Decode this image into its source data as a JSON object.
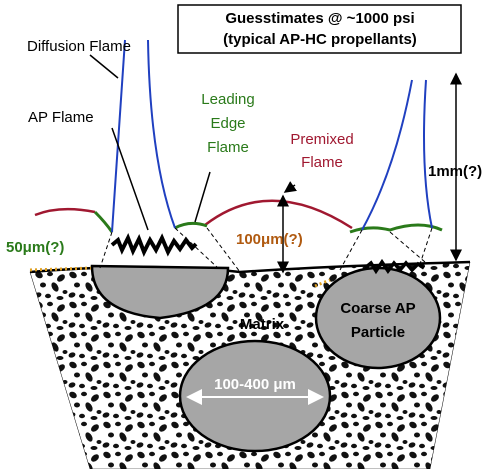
{
  "header": {
    "lines": [
      "Guesstimates @ ~1000 psi",
      "(typical AP-HC propellants)"
    ]
  },
  "labels": {
    "diffusion_flame": "Diffusion Flame",
    "ap_flame": "AP Flame",
    "leading_edge_flame": [
      "Leading",
      "Edge",
      "Flame"
    ],
    "premixed_flame": [
      "Premixed",
      "Flame"
    ],
    "height_1mm": "1mm(?)",
    "gap_50um": "50μm(?)",
    "gap_100um": "100μm(?)",
    "matrix": "Matrix",
    "coarse_ap_particle": [
      "Coarse AP",
      "Particle"
    ],
    "particle_size": "100-400 μm"
  }
}
